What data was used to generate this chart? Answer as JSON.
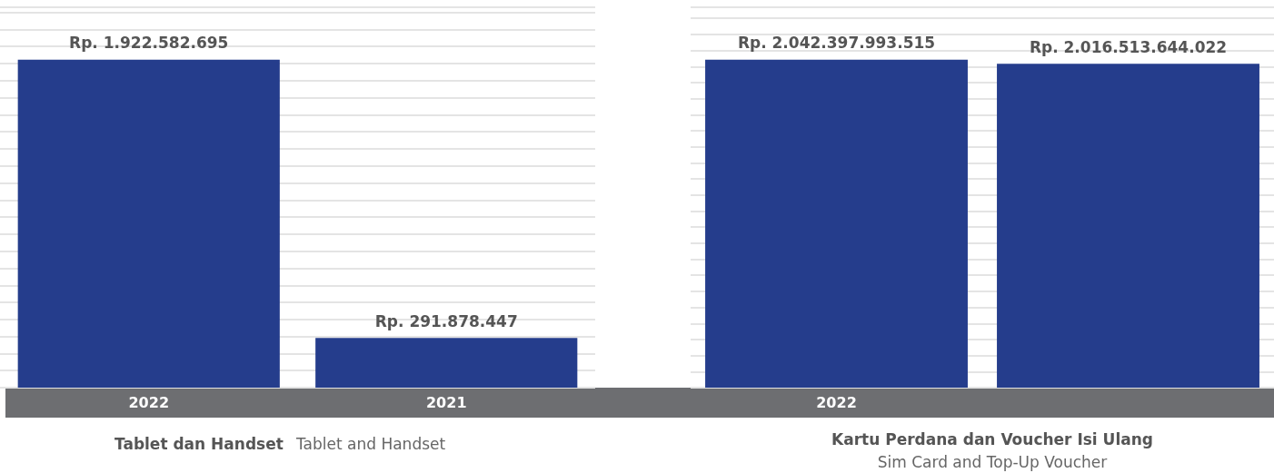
{
  "chart_data": [
    {
      "type": "bar",
      "categories": [
        "2022",
        "2021"
      ],
      "values": [
        1922582695,
        291878447
      ],
      "color": "#253d8c",
      "value_labels": [
        "Rp. 1.922.582.695",
        "Rp. 291.878.447"
      ],
      "xlabel": "Tablet dan Handset",
      "annotations": [
        "Tablet and Handset"
      ],
      "grid": "y",
      "tick_labels": "x"
    },
    {
      "type": "bar",
      "categories": [
        "2022",
        null
      ],
      "values": [
        2042397993515,
        2016513644022
      ],
      "color": "#253d8c",
      "value_labels": [
        "Rp. 2.042.397.993.515",
        "Rp. 2.016.513.644.022"
      ],
      "xlabel": "Kartu Perdana dan Voucher Isi Ulang",
      "annotations": [
        "Sim Card and Top-Up Voucher"
      ],
      "grid": "y",
      "tick_labels": "x"
    }
  ]
}
